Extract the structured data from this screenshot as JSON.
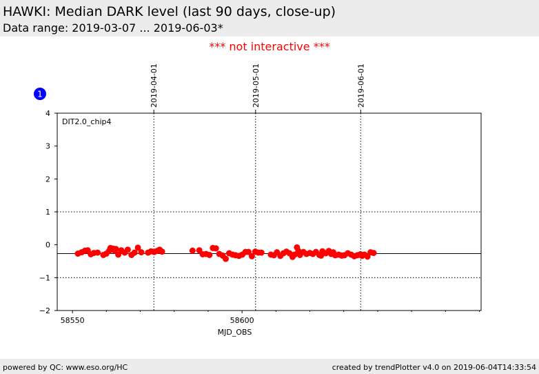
{
  "header": {
    "title": "HAWKI: Median DARK level (last 90 days, close-up)",
    "subtitle": "Data range: 2019-03-07 ... 2019-06-03*"
  },
  "notice": "*** not interactive ***",
  "badge": "1",
  "footer": {
    "left": "powered by QC: www.eso.org/HC",
    "right": "created by trendPlotter v4.0 on 2019-06-04T14:33:54"
  },
  "colors": {
    "points": "#ff0000",
    "badge": "#0000ff",
    "notice": "#ff0000",
    "band": "#ececec"
  },
  "chart_data": {
    "type": "scatter",
    "annotation": "DIT2.0_chip4",
    "xlabel": "MJD_OBS",
    "ylabel": "",
    "xlim": [
      58545.5,
      58670.5
    ],
    "ylim": [
      -2,
      4
    ],
    "x_ticks": [
      58550,
      58600
    ],
    "y_ticks": [
      -2,
      -1,
      0,
      1,
      2,
      3,
      4
    ],
    "date_markers": [
      {
        "label": "2019-04-01",
        "x": 58574
      },
      {
        "label": "2019-05-01",
        "x": 58604
      },
      {
        "label": "2019-06-01",
        "x": 58635
      }
    ],
    "reference_lines": {
      "solid": [
        -0.27
      ],
      "dotted": [
        1,
        -1
      ]
    },
    "grid": false,
    "series": [
      {
        "x": [
          58551.6,
          58552.7,
          58553.7,
          58554.5,
          58555.4,
          58556.3,
          58557.4,
          58559.1,
          58560.0,
          58560.8,
          58561.2,
          58562.0,
          58562.4,
          58562.8,
          58563.5,
          58564.4,
          58565.4,
          58566.3,
          58567.4,
          58568.3,
          58569.3,
          58570.3,
          58572.3,
          58573.2,
          58574.1,
          58574.9,
          58575.7,
          58576.4,
          58585.4,
          58587.4,
          58588.4,
          58589.4,
          58590.4,
          58591.4,
          58592.3,
          58593.3,
          58594.3,
          58595.2,
          58596.2,
          58597.2,
          58598.1,
          58599.1,
          58600.1,
          58601.0,
          58601.9,
          58602.9,
          58603.9,
          58604.8,
          58605.7,
          58608.5,
          58609.4,
          58610.3,
          58611.3,
          58612.2,
          58613.1,
          58614.0,
          58614.9,
          58615.5,
          58616.2,
          58616.6,
          58617.1,
          58618.1,
          58619.0,
          58620.0,
          58620.9,
          58621.8,
          58622.8,
          58623.3,
          58623.7,
          58624.7,
          58625.6,
          58626.3,
          58626.9,
          58627.5,
          58628.5,
          58629.4,
          58630.2,
          58631.2,
          58632.2,
          58633.1,
          58634.0,
          58634.9,
          58635.4,
          58636.1,
          58637.0,
          58637.9,
          58638.8
        ],
        "y": [
          -0.27,
          -0.23,
          -0.18,
          -0.17,
          -0.29,
          -0.25,
          -0.24,
          -0.31,
          -0.27,
          -0.19,
          -0.1,
          -0.12,
          -0.18,
          -0.13,
          -0.3,
          -0.17,
          -0.24,
          -0.15,
          -0.31,
          -0.24,
          -0.09,
          -0.23,
          -0.24,
          -0.2,
          -0.22,
          -0.19,
          -0.15,
          -0.21,
          -0.18,
          -0.17,
          -0.29,
          -0.28,
          -0.31,
          -0.1,
          -0.11,
          -0.28,
          -0.33,
          -0.43,
          -0.26,
          -0.3,
          -0.32,
          -0.34,
          -0.3,
          -0.22,
          -0.22,
          -0.35,
          -0.21,
          -0.24,
          -0.24,
          -0.3,
          -0.32,
          -0.23,
          -0.34,
          -0.26,
          -0.21,
          -0.26,
          -0.37,
          -0.3,
          -0.08,
          -0.19,
          -0.31,
          -0.22,
          -0.28,
          -0.25,
          -0.28,
          -0.22,
          -0.31,
          -0.33,
          -0.2,
          -0.26,
          -0.19,
          -0.28,
          -0.23,
          -0.32,
          -0.3,
          -0.33,
          -0.32,
          -0.26,
          -0.3,
          -0.35,
          -0.32,
          -0.29,
          -0.34,
          -0.3,
          -0.36,
          -0.23,
          -0.25
        ]
      }
    ]
  }
}
